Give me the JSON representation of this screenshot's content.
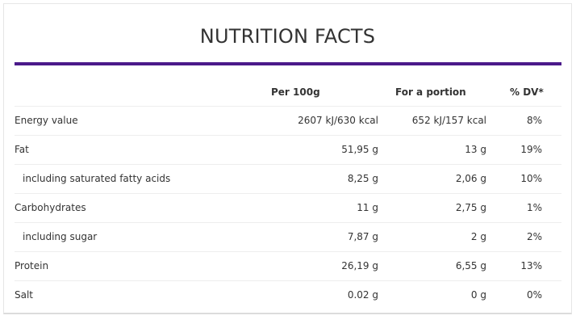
{
  "title": "NUTRITION FACTS",
  "accent_color": "#4b1a8a",
  "columns": {
    "per100": "Per 100g",
    "portion": "For a portion",
    "dv": "% DV*"
  },
  "rows": [
    {
      "label": "Energy value",
      "per100": "2607 kJ/630 kcal",
      "portion": "652 kJ/157 kcal",
      "dv": "8%"
    },
    {
      "label": "Fat",
      "per100": "51,95 g",
      "portion": "13 g",
      "dv": "19%"
    },
    {
      "label": "including saturated fatty acids",
      "per100": "8,25 g",
      "portion": "2,06 g",
      "dv": "10%"
    },
    {
      "label": "Carbohydrates",
      "per100": "11 g",
      "portion": "2,75 g",
      "dv": "1%"
    },
    {
      "label": "including sugar",
      "per100": "7,87 g",
      "portion": "2 g",
      "dv": "2%"
    },
    {
      "label": "Protein",
      "per100": "26,19 g",
      "portion": "6,55 g",
      "dv": "13%"
    },
    {
      "label": "Salt",
      "per100": "0.02 g",
      "portion": "0 g",
      "dv": "0%"
    }
  ]
}
